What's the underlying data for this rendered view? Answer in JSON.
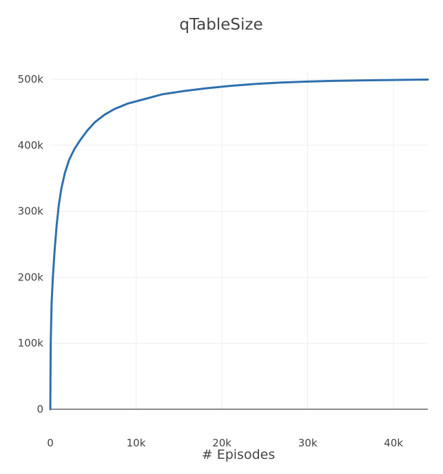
{
  "chart_data": {
    "type": "line",
    "title": "qTableSize",
    "xlabel": "# Episodes",
    "ylabel": "",
    "xlim": [
      0,
      44000
    ],
    "ylim": [
      0,
      500000
    ],
    "x_ticks": [
      {
        "value": 0,
        "label": "0"
      },
      {
        "value": 10000,
        "label": "10k"
      },
      {
        "value": 20000,
        "label": "20k"
      },
      {
        "value": 30000,
        "label": "30k"
      },
      {
        "value": 40000,
        "label": "40k"
      }
    ],
    "y_ticks": [
      {
        "value": 0,
        "label": "0"
      },
      {
        "value": 100000,
        "label": "100k"
      },
      {
        "value": 200000,
        "label": "200k"
      },
      {
        "value": 300000,
        "label": "300k"
      },
      {
        "value": 400000,
        "label": "400k"
      },
      {
        "value": 500000,
        "label": "500k"
      }
    ],
    "grid": true,
    "series": [
      {
        "color": "#2e6fae",
        "x": [
          0,
          50,
          150,
          300,
          500,
          750,
          1000,
          1300,
          1700,
          2200,
          2800,
          3500,
          4300,
          5200,
          6300,
          7500,
          9000,
          11000,
          13000,
          15500,
          18000,
          21000,
          24000,
          27000,
          30000,
          33000,
          36000,
          39000,
          42000,
          44000
        ],
        "y": [
          0,
          100000,
          160000,
          200000,
          240000,
          280000,
          310000,
          335000,
          358000,
          378000,
          394000,
          408000,
          422000,
          435000,
          446000,
          455000,
          463000,
          470000,
          477000,
          482000,
          486000,
          490000,
          493000,
          495000,
          496500,
          497500,
          498200,
          498700,
          499200,
          499500
        ]
      }
    ]
  }
}
